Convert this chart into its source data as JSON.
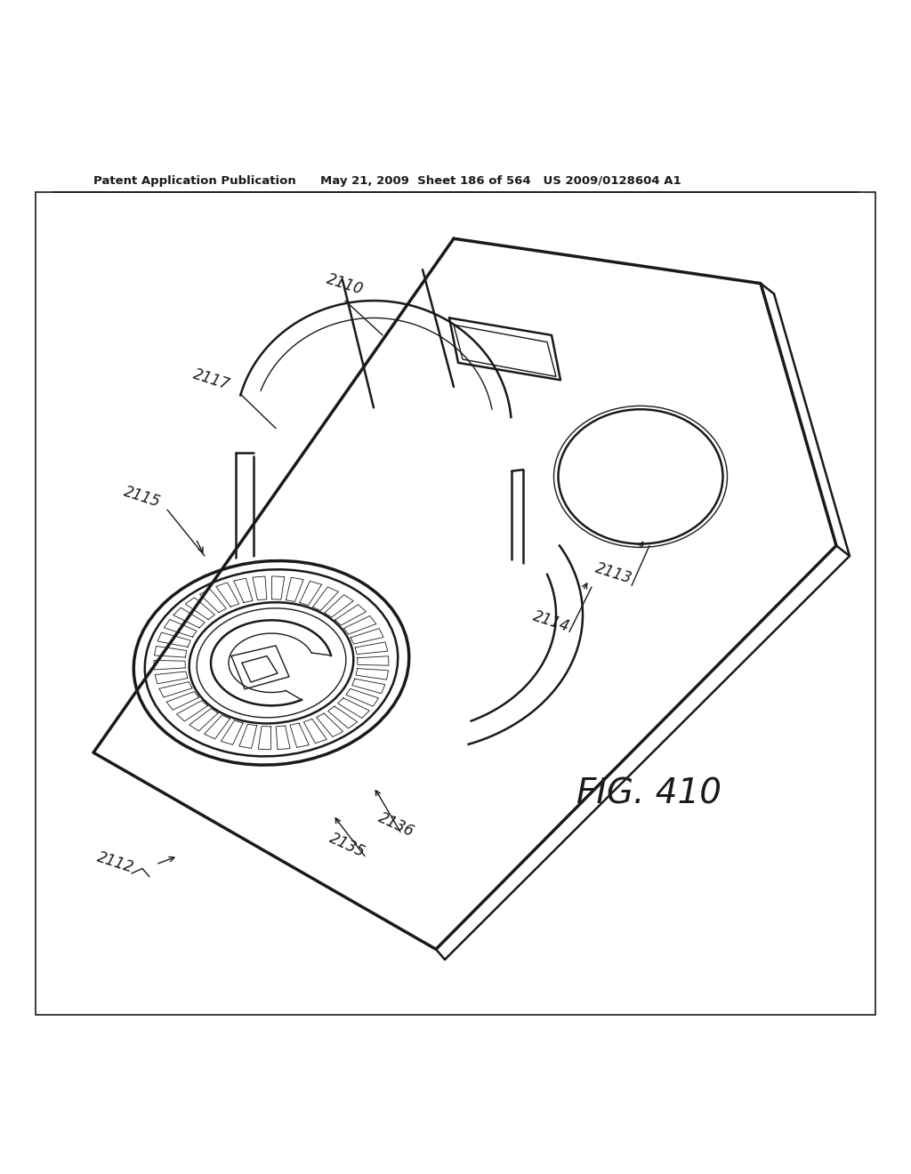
{
  "title_line1": "Patent Application Publication",
  "title_line2": "May 21, 2009  Sheet 186 of 564   US 2009/0128604 A1",
  "fig_label": "FIG. 410",
  "bg_color": "#ffffff",
  "line_color": "#1a1a1a"
}
